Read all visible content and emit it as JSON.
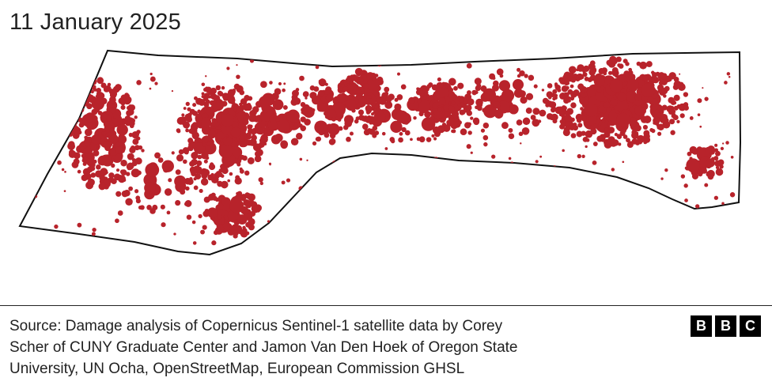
{
  "title": "11 January 2025",
  "source": [
    "Source: Damage analysis of Copernicus Sentinel-1 satellite data by Corey",
    "Scher of CUNY Graduate Center and Jamon Van Den Hoek of Oregon State",
    "University, UN Ocha, OpenStreetMap, European Commission GHSL"
  ],
  "logo": [
    "B",
    "B",
    "C"
  ]
}
